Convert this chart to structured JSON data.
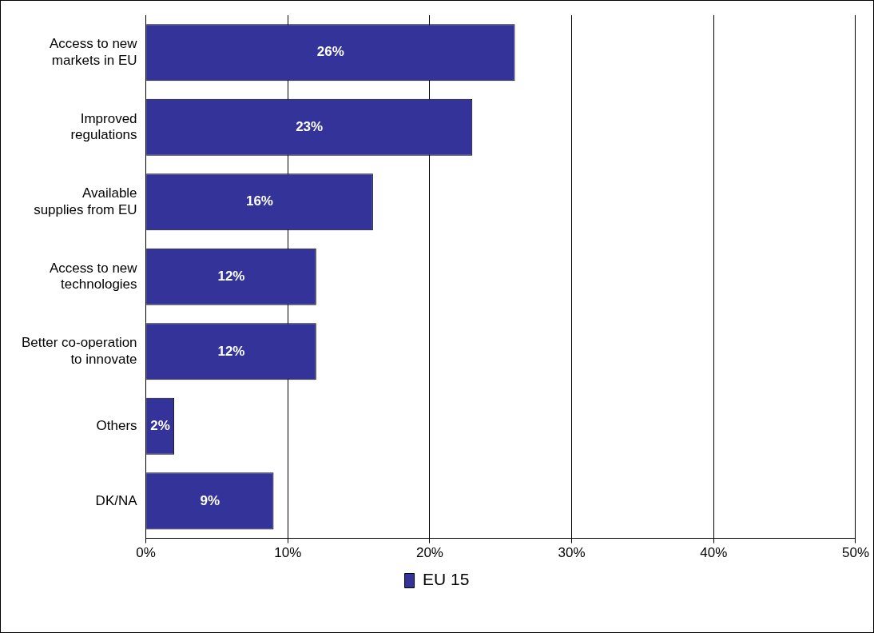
{
  "chart_data": {
    "type": "bar",
    "orientation": "horizontal",
    "categories": [
      "Access to new markets in EU",
      "Improved regulations",
      "Available supplies from EU",
      "Access to new technologies",
      "Better co-operation to innovate",
      "Others",
      "DK/NA"
    ],
    "series": [
      {
        "name": "EU 15",
        "color": "#333399",
        "values": [
          26,
          23,
          16,
          12,
          12,
          2,
          9
        ],
        "value_labels": [
          "26%",
          "23%",
          "16%",
          "12%",
          "12%",
          "2%",
          "9%"
        ]
      }
    ],
    "xlim": [
      0,
      50
    ],
    "xticks": [
      {
        "value": 0,
        "label": "0%"
      },
      {
        "value": 10,
        "label": "10%"
      },
      {
        "value": 20,
        "label": "20%"
      },
      {
        "value": 30,
        "label": "30%"
      },
      {
        "value": 40,
        "label": "40%"
      },
      {
        "value": 50,
        "label": "50%"
      }
    ],
    "grid": "x",
    "legend": "bottom"
  }
}
